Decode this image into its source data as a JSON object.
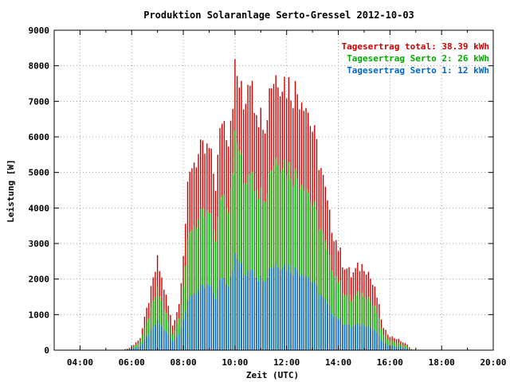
{
  "chart_data": {
    "type": "bar",
    "title": "Produktion Solaranlage Serto-Gressel 2012-10-03",
    "xlabel": "Zeit (UTC)",
    "ylabel": "Leistung [W]",
    "x_ticks": [
      "04:00",
      "06:00",
      "08:00",
      "10:00",
      "12:00",
      "14:00",
      "16:00",
      "18:00",
      "20:00"
    ],
    "y_ticks": [
      "0",
      "1000",
      "2000",
      "3000",
      "4000",
      "5000",
      "6000",
      "7000",
      "8000",
      "9000"
    ],
    "xlim": [
      "03:00",
      "20:00"
    ],
    "ylim": [
      0,
      9000
    ],
    "grid": true,
    "legend_position": "top-right",
    "legend": [
      {
        "label": "Tagesertrag total: 38.39 kWh",
        "color": "#cc0000"
      },
      {
        "label": "Tagesertrag Serto 2: 26 kWh",
        "color": "#00aa00"
      },
      {
        "label": "Tagesertrag Serto 1: 12 kWh",
        "color": "#0066cc"
      }
    ],
    "series": [
      {
        "name": "Tagesertrag total: 38.39 kWh",
        "color": "#cc0000",
        "keypoints": [
          [
            "05:40",
            10
          ],
          [
            "06:00",
            80
          ],
          [
            "06:20",
            350
          ],
          [
            "06:40",
            1400
          ],
          [
            "07:00",
            2500
          ],
          [
            "07:20",
            1500
          ],
          [
            "07:35",
            700
          ],
          [
            "07:50",
            1300
          ],
          [
            "08:00",
            2800
          ],
          [
            "08:10",
            4400
          ],
          [
            "08:20",
            5300
          ],
          [
            "08:40",
            5500
          ],
          [
            "09:00",
            5600
          ],
          [
            "09:15",
            4700
          ],
          [
            "09:30",
            6600
          ],
          [
            "09:45",
            6100
          ],
          [
            "10:00",
            7800
          ],
          [
            "10:10",
            7500
          ],
          [
            "10:20",
            6800
          ],
          [
            "10:30",
            7700
          ],
          [
            "10:40",
            8000
          ],
          [
            "10:50",
            6300
          ],
          [
            "11:00",
            7300
          ],
          [
            "11:10",
            6000
          ],
          [
            "11:20",
            7500
          ],
          [
            "11:40",
            7800
          ],
          [
            "12:00",
            7500
          ],
          [
            "12:20",
            7300
          ],
          [
            "12:40",
            7200
          ],
          [
            "13:00",
            6200
          ],
          [
            "13:20",
            5100
          ],
          [
            "13:40",
            3700
          ],
          [
            "13:55",
            3100
          ],
          [
            "14:10",
            2500
          ],
          [
            "14:30",
            2100
          ],
          [
            "14:45",
            2300
          ],
          [
            "15:00",
            2400
          ],
          [
            "15:10",
            2200
          ],
          [
            "15:30",
            1500
          ],
          [
            "15:45",
            600
          ],
          [
            "16:00",
            400
          ],
          [
            "16:20",
            300
          ],
          [
            "16:40",
            150
          ],
          [
            "16:50",
            30
          ],
          [
            "17:00",
            0
          ]
        ]
      },
      {
        "name": "Tagesertrag Serto 2: 26 kWh",
        "color": "#00aa00",
        "keypoints": [
          [
            "05:40",
            5
          ],
          [
            "06:00",
            50
          ],
          [
            "06:20",
            250
          ],
          [
            "06:40",
            950
          ],
          [
            "07:00",
            1700
          ],
          [
            "07:20",
            1000
          ],
          [
            "07:35",
            450
          ],
          [
            "07:50",
            900
          ],
          [
            "08:00",
            1900
          ],
          [
            "08:10",
            2900
          ],
          [
            "08:20",
            3500
          ],
          [
            "08:40",
            3700
          ],
          [
            "09:00",
            3800
          ],
          [
            "09:15",
            3200
          ],
          [
            "09:30",
            4500
          ],
          [
            "09:45",
            4100
          ],
          [
            "10:00",
            5900
          ],
          [
            "10:10",
            5700
          ],
          [
            "10:20",
            4700
          ],
          [
            "10:30",
            5100
          ],
          [
            "10:40",
            5300
          ],
          [
            "10:50",
            4300
          ],
          [
            "11:00",
            4900
          ],
          [
            "11:10",
            4100
          ],
          [
            "11:20",
            5100
          ],
          [
            "11:40",
            5500
          ],
          [
            "12:00",
            5200
          ],
          [
            "12:20",
            4900
          ],
          [
            "12:40",
            4800
          ],
          [
            "13:00",
            4100
          ],
          [
            "13:20",
            3400
          ],
          [
            "13:40",
            2500
          ],
          [
            "13:55",
            2100
          ],
          [
            "14:10",
            1700
          ],
          [
            "14:30",
            1400
          ],
          [
            "14:45",
            1550
          ],
          [
            "15:00",
            1600
          ],
          [
            "15:10",
            1500
          ],
          [
            "15:30",
            1050
          ],
          [
            "15:45",
            420
          ],
          [
            "16:00",
            280
          ],
          [
            "16:20",
            200
          ],
          [
            "16:40",
            100
          ],
          [
            "16:50",
            20
          ],
          [
            "17:00",
            0
          ]
        ]
      },
      {
        "name": "Tagesertrag Serto 1: 12 kWh",
        "color": "#0066cc",
        "keypoints": [
          [
            "05:40",
            5
          ],
          [
            "06:00",
            30
          ],
          [
            "06:20",
            100
          ],
          [
            "06:40",
            450
          ],
          [
            "07:00",
            800
          ],
          [
            "07:20",
            500
          ],
          [
            "07:35",
            250
          ],
          [
            "07:50",
            450
          ],
          [
            "08:00",
            900
          ],
          [
            "08:10",
            1300
          ],
          [
            "08:20",
            1600
          ],
          [
            "08:40",
            1700
          ],
          [
            "09:00",
            1800
          ],
          [
            "09:15",
            1500
          ],
          [
            "09:30",
            2100
          ],
          [
            "09:45",
            1900
          ],
          [
            "10:00",
            2600
          ],
          [
            "10:10",
            2500
          ],
          [
            "10:20",
            2100
          ],
          [
            "10:30",
            2300
          ],
          [
            "10:40",
            2400
          ],
          [
            "10:50",
            1950
          ],
          [
            "11:00",
            2250
          ],
          [
            "11:10",
            1900
          ],
          [
            "11:20",
            2350
          ],
          [
            "11:40",
            2450
          ],
          [
            "12:00",
            2350
          ],
          [
            "12:20",
            2250
          ],
          [
            "12:40",
            2200
          ],
          [
            "13:00",
            1900
          ],
          [
            "13:20",
            1550
          ],
          [
            "13:40",
            1150
          ],
          [
            "13:55",
            950
          ],
          [
            "14:10",
            780
          ],
          [
            "14:30",
            650
          ],
          [
            "14:45",
            700
          ],
          [
            "15:00",
            740
          ],
          [
            "15:10",
            680
          ],
          [
            "15:30",
            480
          ],
          [
            "15:45",
            190
          ],
          [
            "16:00",
            130
          ],
          [
            "16:20",
            90
          ],
          [
            "16:40",
            45
          ],
          [
            "16:50",
            10
          ],
          [
            "17:00",
            0
          ]
        ]
      }
    ]
  }
}
